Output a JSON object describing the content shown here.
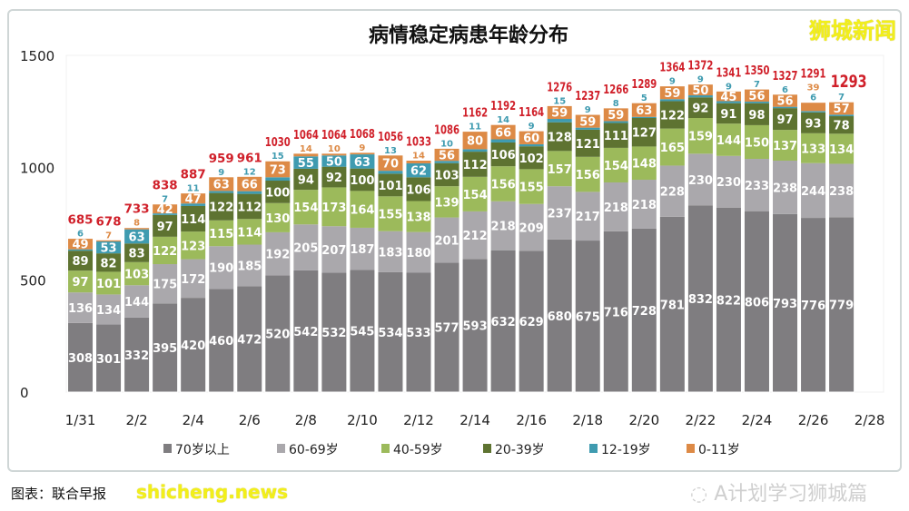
{
  "chart_data": {
    "type": "bar",
    "stacked": true,
    "title": "病情稳定病患年龄分布",
    "categories": [
      "1/31",
      "2/1",
      "2/2",
      "2/3",
      "2/4",
      "2/5",
      "2/6",
      "2/7",
      "2/8",
      "2/9",
      "2/10",
      "2/11",
      "2/12",
      "2/13",
      "2/14",
      "2/15",
      "2/16",
      "2/17",
      "2/18",
      "2/19",
      "2/20",
      "2/21",
      "2/22",
      "2/23",
      "2/24",
      "2/25",
      "2/26",
      "2/27"
    ],
    "x_tick_labels": [
      "1/31",
      "2/2",
      "2/4",
      "2/6",
      "2/8",
      "2/10",
      "2/12",
      "2/14",
      "2/16",
      "2/18",
      "2/20",
      "2/22",
      "2/24",
      "2/26",
      "2/28"
    ],
    "y_ticks": [
      0,
      500,
      1000,
      1500
    ],
    "ylim": [
      0,
      1500
    ],
    "grid": false,
    "legend_placement": "bottom",
    "series": [
      {
        "name": "70岁以上",
        "color": "#7f7d80",
        "values": [
          308,
          301,
          332,
          395,
          420,
          460,
          472,
          520,
          542,
          532,
          545,
          534,
          533,
          577,
          593,
          632,
          629,
          680,
          675,
          716,
          728,
          781,
          832,
          822,
          806,
          793,
          776,
          779
        ]
      },
      {
        "name": "60-69岁",
        "color": "#aaa8ac",
        "values": [
          136,
          134,
          144,
          175,
          172,
          190,
          185,
          192,
          205,
          207,
          187,
          183,
          180,
          201,
          212,
          218,
          209,
          237,
          217,
          218,
          218,
          228,
          230,
          230,
          233,
          238,
          244,
          238
        ]
      },
      {
        "name": "40-59岁",
        "color": "#9cba5b",
        "values": [
          97,
          101,
          103,
          122,
          123,
          115,
          114,
          130,
          154,
          173,
          164,
          155,
          138,
          139,
          154,
          156,
          155,
          157,
          156,
          154,
          148,
          165,
          159,
          144,
          150,
          137,
          133,
          134
        ]
      },
      {
        "name": "20-39岁",
        "color": "#5e7331",
        "values": [
          89,
          82,
          83,
          97,
          114,
          122,
          112,
          100,
          94,
          92,
          100,
          101,
          106,
          103,
          112,
          106,
          102,
          128,
          121,
          111,
          127,
          122,
          92,
          91,
          98,
          97,
          93,
          78
        ]
      },
      {
        "name": "12-19岁",
        "color": "#3f9bb0",
        "values": [
          6,
          53,
          63,
          7,
          11,
          9,
          12,
          15,
          55,
          50,
          63,
          13,
          62,
          10,
          11,
          14,
          9,
          15,
          9,
          8,
          5,
          9,
          9,
          9,
          7,
          6,
          6,
          7
        ]
      },
      {
        "name": "0-11岁",
        "color": "#dd8a46",
        "values": [
          49,
          7,
          8,
          42,
          47,
          63,
          66,
          73,
          14,
          10,
          9,
          70,
          14,
          56,
          80,
          66,
          60,
          59,
          59,
          59,
          63,
          59,
          50,
          45,
          56,
          56,
          39,
          57
        ]
      }
    ],
    "totals": [
      685,
      678,
      733,
      838,
      887,
      959,
      961,
      1030,
      1064,
      1064,
      1068,
      1056,
      1033,
      1086,
      1162,
      1192,
      1164,
      1276,
      1237,
      1266,
      1289,
      1364,
      1372,
      1341,
      1350,
      1327,
      1291,
      1293
    ],
    "total_label_color": "#d0202a"
  },
  "watermarks": {
    "top_right": "狮城新闻",
    "bottom_left": "shicheng.news",
    "wechat": "A计划学习狮城篇"
  },
  "caption": "图表：联合早报"
}
